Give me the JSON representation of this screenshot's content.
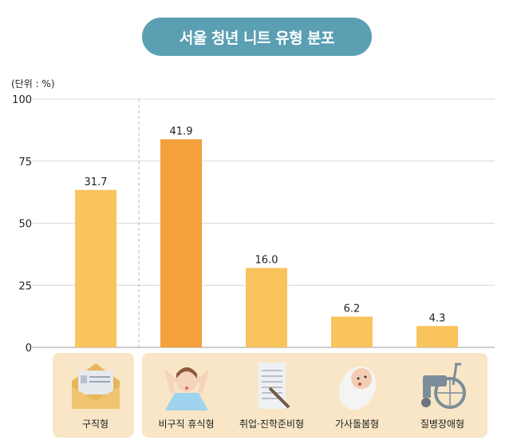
{
  "title": "서울 청년 니트 유형 분포",
  "chart_data": {
    "type": "bar",
    "unit_label": "(단위 : %)",
    "categories": [
      "구직형",
      "비구직 휴식형",
      "취업·진학준비형",
      "가사돌봄형",
      "질병장애형"
    ],
    "values": [
      31.7,
      41.9,
      16.0,
      6.2,
      4.3
    ],
    "value_labels": [
      "31.7",
      "41.9",
      "16.0",
      "6.2",
      "4.3"
    ],
    "yticks": [
      "0",
      "25",
      "50",
      "75",
      "100"
    ],
    "ylim": [
      0,
      100
    ],
    "grid": true,
    "legend": "none",
    "colors": {
      "bar": "#f9c45c",
      "highlight": "#f4a03c",
      "title_bg": "#5b9fb2",
      "panel": "#f8e6c6"
    },
    "icons": [
      "envelope-icon",
      "stressed-person-icon",
      "document-pencil-icon",
      "baby-icon",
      "wheelchair-icon"
    ]
  }
}
